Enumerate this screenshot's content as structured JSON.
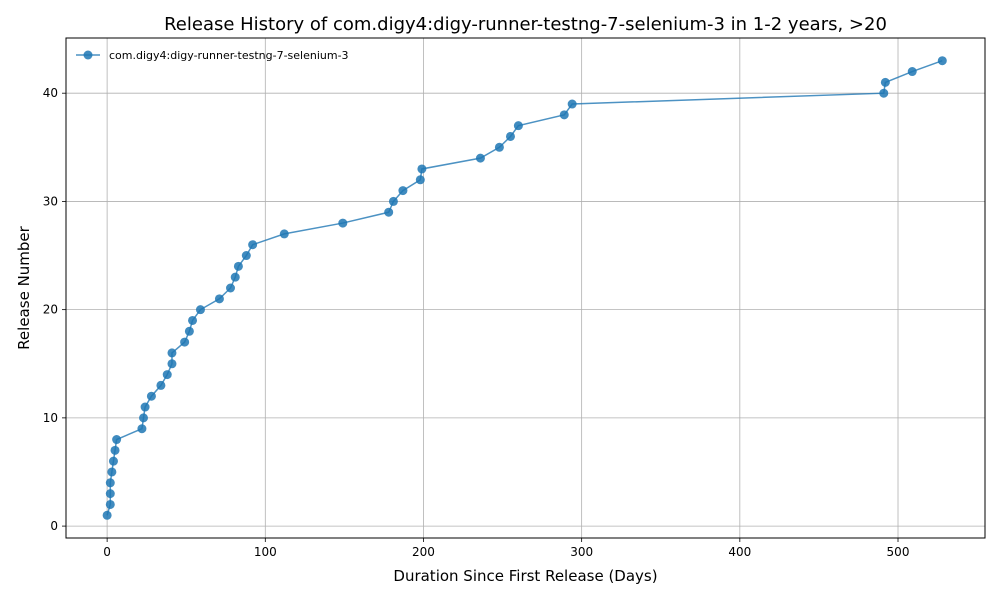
{
  "chart_data": {
    "type": "line",
    "title": "Release History of com.digy4:digy-runner-testng-7-selenium-3 in 1-2 years, >20",
    "xlabel": "Duration Since First Release (Days)",
    "ylabel": "Release Number",
    "xlim": [
      -26,
      555
    ],
    "ylim": [
      -1.1,
      45.1
    ],
    "xticks": [
      0,
      100,
      200,
      300,
      400,
      500
    ],
    "yticks": [
      0,
      10,
      20,
      30,
      40
    ],
    "grid": true,
    "legend_position": "top-left",
    "series": [
      {
        "name": "com.digy4:digy-runner-testng-7-selenium-3",
        "color": "#1f77b4",
        "marker": "circle",
        "x": [
          0,
          2,
          2,
          2,
          3,
          4,
          5,
          6,
          22,
          23,
          24,
          28,
          34,
          38,
          41,
          41,
          49,
          52,
          54,
          59,
          71,
          78,
          81,
          83,
          88,
          92,
          112,
          149,
          178,
          181,
          187,
          198,
          199,
          236,
          248,
          255,
          260,
          289,
          294,
          491,
          492,
          509,
          528
        ],
        "y": [
          1,
          2,
          3,
          4,
          5,
          6,
          7,
          8,
          9,
          10,
          11,
          12,
          13,
          14,
          15,
          16,
          17,
          18,
          19,
          20,
          21,
          22,
          23,
          24,
          25,
          26,
          27,
          28,
          29,
          30,
          31,
          32,
          33,
          34,
          35,
          36,
          37,
          38,
          39,
          40,
          41,
          42,
          43
        ]
      }
    ]
  }
}
